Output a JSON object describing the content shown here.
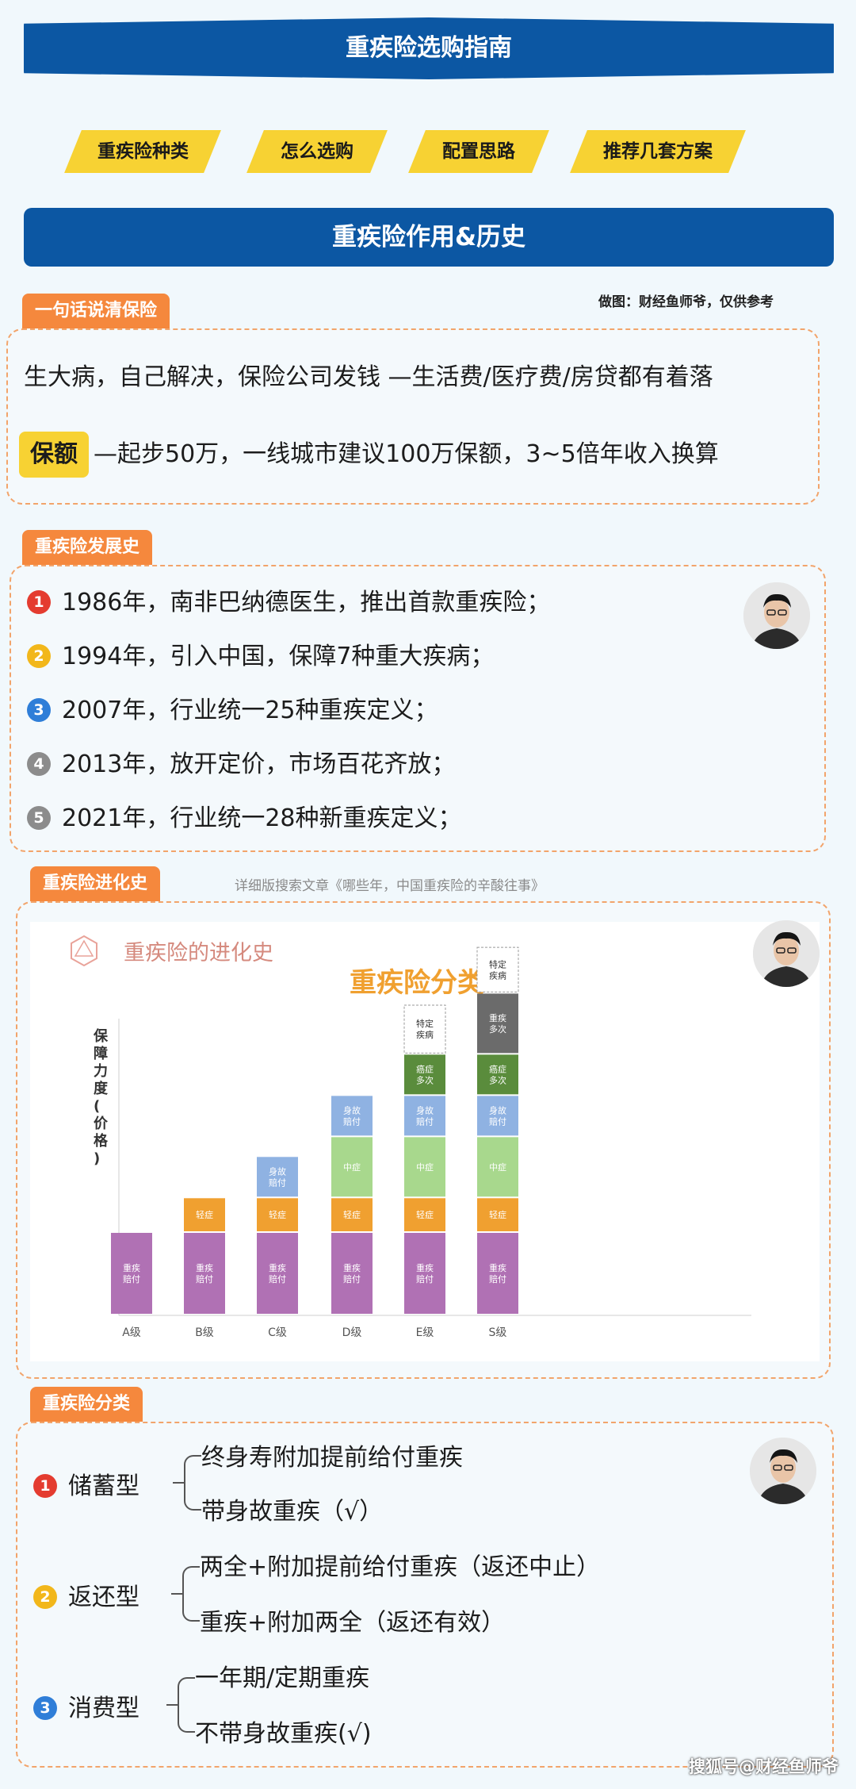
{
  "title": "重疾险选购指南",
  "tabs": [
    "重疾险种类",
    "怎么选购",
    "配置思路",
    "推荐几套方案"
  ],
  "section_banner": "重疾险作用&历史",
  "credit": "做图：财经鱼师爷，仅供参考",
  "intro": {
    "label": "一句话说清保险",
    "line1": "生大病，自己解决，保险公司发钱 —生活费/医疗费/房贷都有着落",
    "amount_pill": "保额",
    "amount_text": "—起步50万，一线城市建议100万保额，3~5倍年收入换算"
  },
  "history": {
    "label": "重疾险发展史",
    "items": [
      {
        "num": "1",
        "text": "1986年，南非巴纳德医生，推出首款重疾险；"
      },
      {
        "num": "2",
        "text": "1994年，引入中国，保障7种重大疾病；"
      },
      {
        "num": "3",
        "text": "2007年，行业统一25种重疾定义；"
      },
      {
        "num": "4",
        "text": "2013年，放开定价，市场百花齐放；"
      },
      {
        "num": "5",
        "text": "2021年，行业统一28种新重疾定义；"
      }
    ]
  },
  "evolution": {
    "label": "重疾险进化史",
    "note": "详细版搜索文章《哪些年，中国重疾险的辛酸往事》"
  },
  "chart_data": {
    "type": "bar",
    "title": "重疾险分类",
    "subtitle": "重疾险的进化史",
    "ylabel": "保障力度(价格)",
    "categories": [
      "A级",
      "B级",
      "C级",
      "D级",
      "E级",
      "S级"
    ],
    "layers": [
      {
        "name": "重疾赔付",
        "color": "#b071b4",
        "values": [
          1,
          1,
          1,
          1,
          1,
          1
        ]
      },
      {
        "name": "轻症",
        "color": "#f0a030",
        "values": [
          0,
          0.42,
          0.42,
          0.42,
          0.42,
          0.42
        ]
      },
      {
        "name": "身故赔付",
        "color": "#8fb2e2",
        "values": [
          0,
          0,
          0.5,
          0,
          0,
          0
        ]
      },
      {
        "name": "中症",
        "color": "#a8d88d",
        "values": [
          0,
          0,
          0,
          0.74,
          0.74,
          0.74
        ]
      },
      {
        "name": "身故赔付",
        "color": "#8fb2e2",
        "values": [
          0,
          0,
          0,
          0.5,
          0.5,
          0.5
        ]
      },
      {
        "name": "癌症多次",
        "color": "#5a8c3c",
        "values": [
          0,
          0,
          0,
          0,
          0.5,
          0.5
        ]
      },
      {
        "name": "重疾多次",
        "color": "#6b6b6b",
        "values": [
          0,
          0,
          0,
          0,
          0,
          0.74
        ]
      },
      {
        "name": "特定疾病",
        "color": "#ffffff",
        "values": [
          0,
          0,
          0,
          0,
          0.6,
          0.56
        ]
      }
    ]
  },
  "types": {
    "label": "重疾险分类",
    "groups": [
      {
        "num": "1",
        "name": "储蓄型",
        "options": [
          "终身寿附加提前给付重疾",
          "带身故重疾（√）"
        ]
      },
      {
        "num": "2",
        "name": "返还型",
        "options": [
          "两全+附加提前给付重疾（返还中止）",
          "重疾+附加两全（返还有效）"
        ]
      },
      {
        "num": "3",
        "name": "消费型",
        "options": [
          "一年期/定期重疾",
          "不带身故重疾(√)"
        ]
      }
    ]
  },
  "watermark": "搜狐号@财经鱼师爷",
  "colors": {
    "primary": "#0c57a3",
    "accent": "#f7d233",
    "label": "#f5883d",
    "border": "#f2a46b"
  }
}
